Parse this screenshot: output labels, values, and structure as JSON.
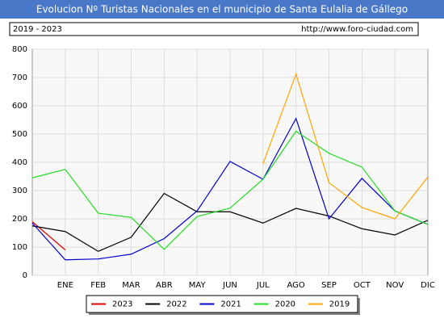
{
  "chart_data": {
    "type": "line",
    "title": "Evolucion Nº Turistas Nacionales en el municipio de Santa Eulalia de Gállego",
    "subtitle": "2019 - 2023",
    "source": "http://www.foro-ciudad.com",
    "categories": [
      null,
      "ENE",
      "FEB",
      "MAR",
      "ABR",
      "MAY",
      "JUN",
      "JUL",
      "AGO",
      "SEP",
      "OCT",
      "NOV",
      "DIC"
    ],
    "ylim": [
      0,
      800
    ],
    "yticks": [
      0,
      100,
      200,
      300,
      400,
      500,
      600,
      700,
      800
    ],
    "grid": true,
    "series": [
      {
        "name": "2023",
        "color": "#e00000",
        "values": [
          190,
          90,
          null,
          null,
          null,
          null,
          null,
          null,
          null,
          null,
          null,
          null,
          null
        ]
      },
      {
        "name": "2022",
        "color": "#000000",
        "values": [
          175,
          155,
          85,
          135,
          290,
          225,
          225,
          185,
          237,
          210,
          165,
          143,
          195
        ]
      },
      {
        "name": "2021",
        "color": "#0000cc",
        "values": [
          185,
          55,
          58,
          75,
          130,
          228,
          403,
          340,
          555,
          200,
          343,
          228,
          180
        ]
      },
      {
        "name": "2020",
        "color": "#22dd22",
        "values": [
          345,
          375,
          220,
          205,
          92,
          208,
          238,
          340,
          510,
          432,
          383,
          228,
          180
        ]
      },
      {
        "name": "2019",
        "color": "#ffa500",
        "values": [
          null,
          null,
          null,
          null,
          null,
          null,
          null,
          395,
          712,
          328,
          240,
          200,
          348
        ]
      }
    ]
  }
}
